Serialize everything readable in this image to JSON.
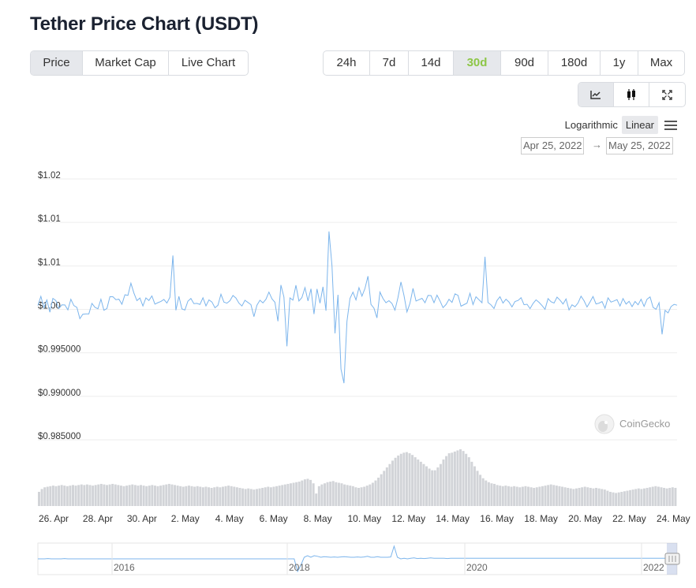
{
  "title": "Tether Price Chart (USDT)",
  "type_tabs": [
    {
      "label": "Price",
      "active": true
    },
    {
      "label": "Market Cap",
      "active": false
    },
    {
      "label": "Live Chart",
      "active": false
    }
  ],
  "range_tabs": [
    {
      "label": "24h",
      "active": false
    },
    {
      "label": "7d",
      "active": false
    },
    {
      "label": "14d",
      "active": false
    },
    {
      "label": "30d",
      "active": true
    },
    {
      "label": "90d",
      "active": false
    },
    {
      "label": "180d",
      "active": false
    },
    {
      "label": "1y",
      "active": false
    },
    {
      "label": "Max",
      "active": false
    }
  ],
  "tools": [
    {
      "icon": "line-chart-icon",
      "active": true
    },
    {
      "icon": "candlestick-icon",
      "active": false
    },
    {
      "icon": "fullscreen-icon",
      "active": false
    }
  ],
  "scale": {
    "logarithmic": "Logarithmic",
    "linear": "Linear",
    "selected": "Linear"
  },
  "date_range": {
    "from": "Apr 25, 2022",
    "to": "May 25, 2022"
  },
  "watermark": "CoinGecko",
  "colors": {
    "line": "#7cb5ec",
    "volume": "#d2d4d8",
    "accent_green": "#8dc647",
    "grid": "#eeeeee"
  },
  "chart_data": {
    "type": "line",
    "series": [
      {
        "values": [
          0.99999,
          1.00104,
          0.99973,
          1.00063,
          0.99922,
          1.00081,
          1.00056,
          0.99965,
          1.00006,
          1.00005,
          0.99949,
          1.00071,
          0.99998,
          0.99978,
          0.99848,
          0.99899,
          0.99902,
          0.99903,
          1.00024,
          0.99979,
          0.99961,
          1.00072,
          0.99945,
          0.99965,
          1.00101,
          1.001,
          1.00066,
          1.00072,
          1.00014,
          1.00122,
          1.00115,
          1.00256,
          1.00142,
          1.00055,
          1.00085,
          0.99994,
          1.00086,
          1.00057,
          1.00109,
          1.00015,
          1.00032,
          1.00046,
          1.00069,
          1.00027,
          1.00093,
          1.00574,
          0.99945,
          1.00104,
          0.9996,
          0.99947,
          1.00049,
          1.0008,
          1.00021,
          1.00024,
          1.00012,
          1.00088,
          0.99995,
          1.00063,
          1.00039,
          0.99973,
          1.00002,
          1.00129,
          1.00037,
          1.00026,
          1.00054,
          1.00114,
          1.00085,
          1.00026,
          0.99994,
          1.00059,
          1.00034,
          1.00009,
          0.9987,
          1.00003,
          1.0006,
          1.00029,
          1.00071,
          1.00153,
          1.00076,
          1.00036,
          0.99818,
          1.00235,
          1.00097,
          0.9953,
          1.00086,
          1.00061,
          1.00232,
          1.00051,
          1.00091,
          1.00205,
          1.00052,
          1.00191,
          0.999,
          1.00189,
          1.00025,
          1.00214,
          0.99939,
          1.0085,
          1.00456,
          0.99679,
          1.00122,
          0.99269,
          0.99106,
          0.99819,
          1.0008,
          1.00152,
          1.00063,
          1.00204,
          1.00107,
          1.00195,
          1.00336,
          1.00012,
          0.99968,
          0.99857,
          1.00153,
          1.00081,
          1.00031,
          1.00054,
          1.00023,
          0.99946,
          1.0009,
          1.0027,
          1.00117,
          0.99925,
          1.00024,
          1.00196,
          1.00051,
          1.00066,
          1.00082,
          1.00031,
          1.00115,
          1.00113,
          1.00032,
          1.00118,
          1.00052,
          0.99975,
          1.0001,
          1.00071,
          1.00034,
          1.00133,
          1.00116,
          0.99991,
          1.00009,
          1.00026,
          1.0014,
          1.0001,
          1.001,
          1.00065,
          1.00031,
          1.00559,
          1.00034,
          1.00006,
          0.99965,
          1.00056,
          1.001,
          1.00027,
          1.00072,
          1.00039,
          0.99983,
          1.00045,
          1.00057,
          1.00089,
          1.00008,
          1.00014,
          0.99963,
          1.00023,
          1.00064,
          1.00035,
          0.99998,
          0.99956,
          1.00078,
          1.00043,
          1.00027,
          1.00095,
          1.00061,
          1.00016,
          1.00074,
          0.99948,
          1.00007,
          0.99985,
          1.00028,
          1.00106,
          1.00054,
          0.99982,
          1.0004,
          1.00102,
          1.00017,
          1.00026,
          1.00044,
          0.99968,
          1.00087,
          1.00038,
          1.00052,
          1.00066,
          0.99993,
          1.00079,
          1.00015,
          1.00047,
          0.99986,
          1.00045,
          1.00007,
          1.00071,
          0.99989,
          1.00072,
          1.00098,
          0.99978,
          0.99956,
          1.00032,
          0.99667,
          0.99944,
          0.99914,
          0.99987,
          1.00012,
          1.00003
        ]
      }
    ],
    "x_ticks": [
      "26. Apr",
      "28. Apr",
      "30. Apr",
      "2. May",
      "4. May",
      "6. May",
      "8. May",
      "10. May",
      "12. May",
      "14. May",
      "16. May",
      "18. May",
      "20. May",
      "22. May",
      "24. May"
    ],
    "y_ticks": [
      "$1.02",
      "$1.01",
      "$1.01",
      "$1.00",
      "$0.995000",
      "$0.990000",
      "$0.985000"
    ],
    "ylim": [
      0.985,
      1.015
    ],
    "volume": [
      0.25,
      0.3,
      0.33,
      0.34,
      0.35,
      0.36,
      0.35,
      0.36,
      0.37,
      0.36,
      0.35,
      0.36,
      0.37,
      0.36,
      0.37,
      0.38,
      0.37,
      0.38,
      0.37,
      0.36,
      0.37,
      0.38,
      0.39,
      0.38,
      0.37,
      0.38,
      0.39,
      0.38,
      0.37,
      0.36,
      0.35,
      0.36,
      0.37,
      0.38,
      0.37,
      0.36,
      0.37,
      0.36,
      0.35,
      0.36,
      0.37,
      0.36,
      0.35,
      0.36,
      0.37,
      0.38,
      0.39,
      0.38,
      0.37,
      0.36,
      0.35,
      0.34,
      0.35,
      0.36,
      0.35,
      0.34,
      0.35,
      0.34,
      0.33,
      0.34,
      0.33,
      0.32,
      0.33,
      0.34,
      0.33,
      0.34,
      0.35,
      0.36,
      0.35,
      0.34,
      0.33,
      0.32,
      0.31,
      0.3,
      0.31,
      0.3,
      0.29,
      0.3,
      0.31,
      0.32,
      0.33,
      0.34,
      0.33,
      0.34,
      0.35,
      0.36,
      0.37,
      0.38,
      0.39,
      0.4,
      0.41,
      0.42,
      0.43,
      0.45,
      0.47,
      0.48,
      0.46,
      0.4,
      0.22,
      0.35,
      0.38,
      0.4,
      0.42,
      0.43,
      0.44,
      0.42,
      0.41,
      0.4,
      0.38,
      0.37,
      0.36,
      0.35,
      0.33,
      0.32,
      0.33,
      0.34,
      0.36,
      0.38,
      0.41,
      0.45,
      0.5,
      0.56,
      0.62,
      0.68,
      0.74,
      0.8,
      0.85,
      0.89,
      0.92,
      0.94,
      0.95,
      0.93,
      0.9,
      0.86,
      0.82,
      0.78,
      0.74,
      0.7,
      0.66,
      0.63,
      0.63,
      0.68,
      0.74,
      0.82,
      0.88,
      0.93,
      0.94,
      0.96,
      0.98,
      1.0,
      0.97,
      0.92,
      0.86,
      0.78,
      0.7,
      0.62,
      0.55,
      0.49,
      0.45,
      0.42,
      0.4,
      0.39,
      0.37,
      0.36,
      0.35,
      0.36,
      0.35,
      0.34,
      0.35,
      0.34,
      0.33,
      0.34,
      0.35,
      0.34,
      0.33,
      0.32,
      0.33,
      0.34,
      0.35,
      0.36,
      0.37,
      0.38,
      0.37,
      0.36,
      0.35,
      0.34,
      0.33,
      0.32,
      0.31,
      0.3,
      0.31,
      0.32,
      0.33,
      0.34,
      0.33,
      0.32,
      0.31,
      0.32,
      0.31,
      0.3,
      0.29,
      0.27,
      0.25,
      0.24,
      0.23,
      0.24,
      0.25,
      0.26,
      0.27,
      0.28,
      0.29,
      0.3,
      0.31,
      0.3,
      0.31,
      0.32,
      0.33,
      0.34,
      0.35,
      0.34,
      0.33,
      0.32,
      0.31,
      0.32,
      0.33,
      0.32
    ],
    "navigator": {
      "x_labels": [
        "2016",
        "2018",
        "2020",
        "2022"
      ],
      "series": [
        0.5,
        0.5,
        0.5,
        0.51,
        0.5,
        0.5,
        0.5,
        0.5,
        0.51,
        0.5,
        0.5,
        0.5,
        0.5,
        0.5,
        0.5,
        0.5,
        0.5,
        0.5,
        0.5,
        0.5,
        0.5,
        0.5,
        0.5,
        0.5,
        0.5,
        0.5,
        0.5,
        0.5,
        0.5,
        0.5,
        0.5,
        0.5,
        0.5,
        0.5,
        0.5,
        0.5,
        0.5,
        0.5,
        0.5,
        0.5,
        0.5,
        0.5,
        0.5,
        0.5,
        0.5,
        0.5,
        0.5,
        0.5,
        0.5,
        0.5,
        0.5,
        0.5,
        0.5,
        0.5,
        0.5,
        0.5,
        0.5,
        0.5,
        0.5,
        0.5,
        0.5,
        0.5,
        0.5,
        0.5,
        0.5,
        0.5,
        0.5,
        0.5,
        0.5,
        0.5,
        0.5,
        0.5,
        0.5,
        0.5,
        0.5,
        0.5,
        0.5,
        0.5,
        0.1,
        0.3,
        0.55,
        0.6,
        0.55,
        0.6,
        0.58,
        0.55,
        0.57,
        0.56,
        0.55,
        0.56,
        0.55,
        0.56,
        0.57,
        0.56,
        0.55,
        0.55,
        0.56,
        0.55,
        0.56,
        0.58,
        0.55,
        0.55,
        0.57,
        0.55,
        0.55,
        0.55,
        0.56,
        0.9,
        0.55,
        0.5,
        0.52,
        0.5,
        0.52,
        0.53,
        0.51,
        0.52,
        0.51,
        0.52,
        0.53,
        0.52,
        0.52,
        0.52,
        0.52,
        0.51,
        0.52,
        0.52,
        0.52,
        0.52,
        0.52,
        0.52,
        0.52,
        0.52,
        0.52,
        0.52,
        0.52,
        0.52,
        0.52,
        0.52,
        0.52,
        0.52,
        0.52,
        0.52,
        0.52,
        0.52,
        0.52,
        0.52,
        0.52,
        0.52,
        0.52,
        0.52,
        0.52,
        0.52,
        0.52,
        0.52,
        0.52,
        0.52,
        0.52,
        0.52,
        0.52,
        0.52,
        0.52,
        0.52,
        0.52,
        0.52,
        0.52,
        0.52,
        0.52,
        0.52,
        0.52,
        0.52,
        0.52,
        0.52,
        0.52,
        0.52,
        0.52,
        0.52,
        0.52,
        0.52,
        0.52,
        0.52,
        0.52,
        0.52,
        0.52,
        0.52,
        0.52,
        0.52,
        0.52,
        0.52,
        0.52,
        0.52,
        0.52,
        0.52,
        0.52
      ]
    }
  }
}
